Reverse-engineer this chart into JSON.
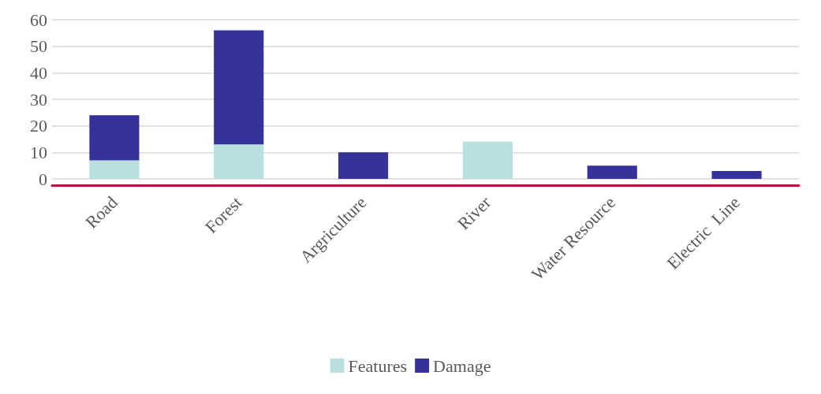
{
  "chart_data": {
    "type": "bar",
    "stacked": true,
    "categories": [
      "Road",
      "Forest",
      "Argriculture",
      "River",
      "Water Resource",
      "Electric  Line"
    ],
    "series": [
      {
        "name": "Features",
        "color": "#b9dfe1",
        "values": [
          7,
          13,
          0,
          14,
          0,
          0
        ]
      },
      {
        "name": "Damage",
        "color": "#35339a",
        "values": [
          17,
          43,
          10,
          0,
          5,
          3
        ]
      }
    ],
    "ylim": [
      0,
      60
    ],
    "yticks": [
      0,
      10,
      20,
      30,
      40,
      50,
      60
    ],
    "grid": "y",
    "legend": "bottom"
  }
}
